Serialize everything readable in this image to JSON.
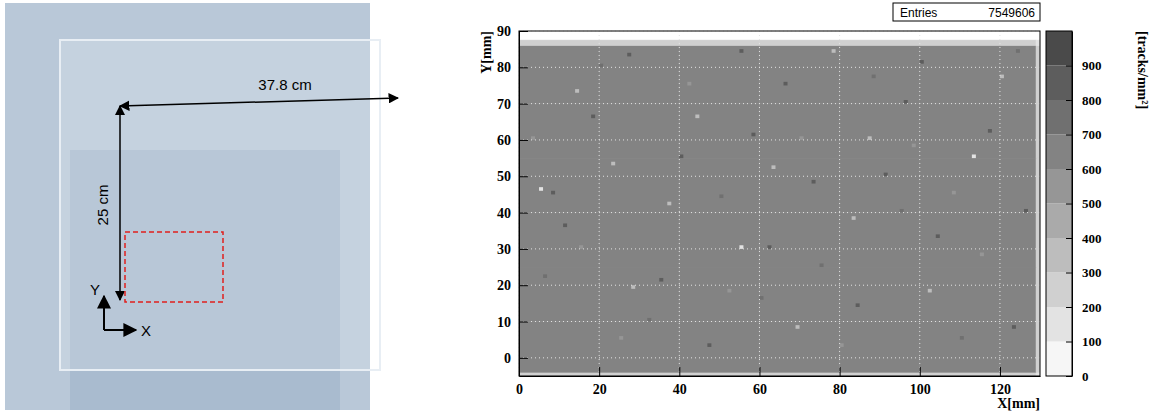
{
  "chart_data": {
    "type": "heatmap",
    "x_label": "X[mm]",
    "y_label": "Y[mm]",
    "xlim": [
      0,
      130
    ],
    "ylim": [
      -5,
      90
    ],
    "xticks": [
      0,
      20,
      40,
      60,
      80,
      100,
      120
    ],
    "yticks": [
      0,
      10,
      20,
      30,
      40,
      50,
      60,
      70,
      80,
      90
    ],
    "grid": true,
    "x_edges": [
      0,
      20,
      40,
      60,
      80,
      100,
      120,
      129,
      130
    ],
    "y_edges": [
      -5,
      -4,
      10,
      25,
      40,
      55,
      70,
      86,
      87.5
    ],
    "values": [
      [
        250,
        250,
        250,
        250,
        250,
        250,
        250,
        150
      ],
      [
        640,
        650,
        640,
        650,
        645,
        650,
        640,
        250
      ],
      [
        650,
        645,
        650,
        640,
        650,
        645,
        650,
        250
      ],
      [
        645,
        650,
        645,
        650,
        640,
        650,
        645,
        250
      ],
      [
        650,
        640,
        650,
        645,
        650,
        640,
        650,
        250
      ],
      [
        640,
        650,
        640,
        650,
        645,
        650,
        640,
        250
      ],
      [
        650,
        645,
        650,
        640,
        650,
        645,
        650,
        250
      ],
      [
        250,
        250,
        250,
        250,
        250,
        250,
        250,
        150
      ]
    ],
    "spot_width": 1,
    "spots": [
      {
        "x": 8,
        "y": 45,
        "value": 850
      },
      {
        "x": 27,
        "y": 83,
        "value": 850
      },
      {
        "x": 55,
        "y": 84,
        "value": 850
      },
      {
        "x": 62,
        "y": 30,
        "value": 850
      },
      {
        "x": 40,
        "y": 55,
        "value": 850
      },
      {
        "x": 96,
        "y": 70,
        "value": 850
      },
      {
        "x": 104,
        "y": 33,
        "value": 850
      },
      {
        "x": 117,
        "y": 62,
        "value": 850
      },
      {
        "x": 11,
        "y": 36,
        "value": 850
      },
      {
        "x": 73,
        "y": 48,
        "value": 850
      },
      {
        "x": 84,
        "y": 14,
        "value": 850
      },
      {
        "x": 123,
        "y": 8,
        "value": 850
      },
      {
        "x": 47,
        "y": 3,
        "value": 850
      },
      {
        "x": 91,
        "y": 50,
        "value": 850
      },
      {
        "x": 18,
        "y": 66,
        "value": 850
      },
      {
        "x": 66,
        "y": 75,
        "value": 850
      },
      {
        "x": 100,
        "y": 81,
        "value": 850
      },
      {
        "x": 35,
        "y": 21,
        "value": 850
      },
      {
        "x": 58,
        "y": 61,
        "value": 850
      },
      {
        "x": 126,
        "y": 40,
        "value": 850
      },
      {
        "x": 113,
        "y": 55,
        "value": 150
      },
      {
        "x": 55,
        "y": 30,
        "value": 150
      },
      {
        "x": 5,
        "y": 46,
        "value": 150
      },
      {
        "x": 83,
        "y": 38,
        "value": 350
      },
      {
        "x": 28,
        "y": 19,
        "value": 350
      },
      {
        "x": 102,
        "y": 18,
        "value": 350
      },
      {
        "x": 69,
        "y": 8,
        "value": 350
      },
      {
        "x": 14,
        "y": 73,
        "value": 350
      },
      {
        "x": 120,
        "y": 77,
        "value": 350
      },
      {
        "x": 44,
        "y": 66,
        "value": 350
      },
      {
        "x": 87,
        "y": 60,
        "value": 350
      },
      {
        "x": 37,
        "y": 42,
        "value": 350
      },
      {
        "x": 78,
        "y": 84,
        "value": 350
      },
      {
        "x": 63,
        "y": 52,
        "value": 350
      },
      {
        "x": 23,
        "y": 53,
        "value": 350
      },
      {
        "x": 20,
        "y": 80,
        "value": 750
      },
      {
        "x": 50,
        "y": 44,
        "value": 750
      },
      {
        "x": 75,
        "y": 25,
        "value": 750
      },
      {
        "x": 110,
        "y": 5,
        "value": 750
      },
      {
        "x": 32,
        "y": 10,
        "value": 750
      },
      {
        "x": 95,
        "y": 40,
        "value": 750
      },
      {
        "x": 6,
        "y": 22,
        "value": 750
      },
      {
        "x": 124,
        "y": 84,
        "value": 750
      },
      {
        "x": 60,
        "y": 16,
        "value": 750
      },
      {
        "x": 88,
        "y": 77,
        "value": 750
      },
      {
        "x": 15,
        "y": 30,
        "value": 550
      },
      {
        "x": 42,
        "y": 75,
        "value": 550
      },
      {
        "x": 70,
        "y": 60,
        "value": 550
      },
      {
        "x": 98,
        "y": 58,
        "value": 550
      },
      {
        "x": 115,
        "y": 28,
        "value": 550
      },
      {
        "x": 25,
        "y": 5,
        "value": 550
      },
      {
        "x": 80,
        "y": 3,
        "value": 550
      },
      {
        "x": 52,
        "y": 18,
        "value": 550
      },
      {
        "x": 108,
        "y": 45,
        "value": 550
      },
      {
        "x": 3,
        "y": 60,
        "value": 550
      }
    ],
    "colorbar": {
      "label": "[tracks/mm²]",
      "range": [
        0,
        1000
      ],
      "ticks": [
        0,
        100,
        200,
        300,
        400,
        500,
        600,
        700,
        800,
        900
      ]
    },
    "stats": {
      "label": "Entries",
      "value": 7549606
    }
  },
  "photo": {
    "width_label": "37.8 cm",
    "height_label": "25 cm",
    "x_label": "X",
    "y_label": "Y"
  }
}
